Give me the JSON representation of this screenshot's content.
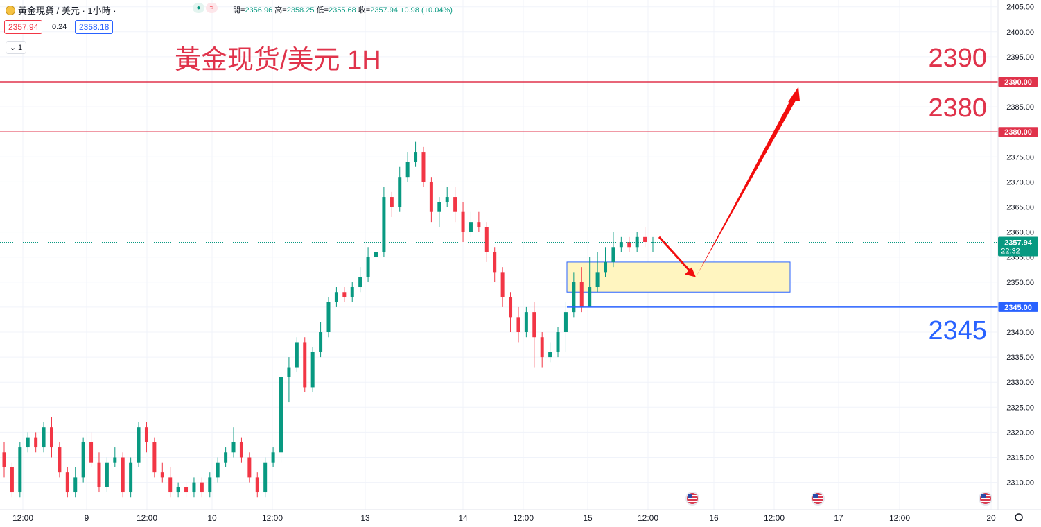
{
  "header": {
    "symbol": "黃金現貨 / 美元 · 1小時 ·",
    "open_label": "開=",
    "open": "2356.96",
    "high_label": "高=",
    "high": "2358.25",
    "low_label": "低=",
    "low": "2355.68",
    "close_label": "收=",
    "close": "2357.94",
    "change": "+0.98 (+0.04%)",
    "sell_price": "2357.94",
    "spread": "0.24",
    "buy_price": "2358.18",
    "indicator_count": "1",
    "chart_title": "黃金现货/美元 1H"
  },
  "colors": {
    "up": "#089981",
    "down": "#f23645",
    "red_line": "#e0334b",
    "blue_line": "#2962ff",
    "zone_fill": "#fff5c0",
    "zone_border": "#2962ff",
    "price_line": "#089981"
  },
  "chart_data": {
    "type": "candlestick",
    "title": "黃金现货/美元 1H",
    "ylim": [
      2305,
      2405
    ],
    "yticks": [
      2310,
      2315,
      2320,
      2325,
      2330,
      2335,
      2340,
      2345,
      2350,
      2355,
      2360,
      2365,
      2370,
      2375,
      2380,
      2385,
      2390,
      2395,
      2400,
      2405
    ],
    "xticks": [
      "12:00",
      "9",
      "12:00",
      "10",
      "12:00",
      "13",
      "14",
      "12:00",
      "15",
      "12:00",
      "16",
      "12:00",
      "17",
      "12:00",
      "20"
    ],
    "current_price": "2357.94",
    "countdown": "22:32",
    "horizontal_levels": [
      {
        "value": 2390,
        "label": "2390.00",
        "annotation": "2390",
        "color": "red"
      },
      {
        "value": 2380,
        "label": "2380.00",
        "annotation": "2380",
        "color": "red"
      },
      {
        "value": 2345,
        "label": "2345.00",
        "annotation": "2345",
        "color": "blue"
      }
    ],
    "zone": {
      "from_bar": 72,
      "to_bar": 102,
      "low": 2348,
      "high": 2354
    },
    "arrow_path": [
      {
        "bar": 80,
        "price": 2359
      },
      {
        "bar": 86,
        "price": 2351
      },
      {
        "bar": 103,
        "price": 2389
      }
    ],
    "event_markers": [
      "us-flag-icon",
      "us-flag-icon",
      "us-flag-icon"
    ],
    "candles": [
      [
        2316,
        2313,
        2318,
        2311
      ],
      [
        2313,
        2308,
        2314,
        2307
      ],
      [
        2308,
        2317,
        2318,
        2307
      ],
      [
        2317,
        2319,
        2320,
        2316
      ],
      [
        2319,
        2317,
        2320,
        2316
      ],
      [
        2317,
        2321,
        2322,
        2316
      ],
      [
        2321,
        2317,
        2323,
        2315
      ],
      [
        2317,
        2312,
        2318,
        2311
      ],
      [
        2312,
        2308,
        2313,
        2307
      ],
      [
        2308,
        2311,
        2313,
        2307
      ],
      [
        2311,
        2318,
        2319,
        2310
      ],
      [
        2318,
        2314,
        2320,
        2313
      ],
      [
        2314,
        2309,
        2316,
        2308
      ],
      [
        2309,
        2314,
        2315,
        2308
      ],
      [
        2314,
        2315,
        2317,
        2313
      ],
      [
        2315,
        2308,
        2316,
        2307
      ],
      [
        2308,
        2314,
        2315,
        2307
      ],
      [
        2314,
        2321,
        2322,
        2313
      ],
      [
        2321,
        2318,
        2322,
        2316
      ],
      [
        2318,
        2312,
        2319,
        2311
      ],
      [
        2312,
        2311,
        2314,
        2310
      ],
      [
        2311,
        2308,
        2313,
        2307
      ],
      [
        2308,
        2309,
        2310,
        2307
      ],
      [
        2309,
        2308,
        2310,
        2307
      ],
      [
        2308,
        2310,
        2311,
        2307
      ],
      [
        2310,
        2308,
        2311,
        2307
      ],
      [
        2308,
        2311,
        2312,
        2307
      ],
      [
        2311,
        2314,
        2315,
        2310
      ],
      [
        2314,
        2316,
        2317,
        2313
      ],
      [
        2316,
        2318,
        2321,
        2315
      ],
      [
        2318,
        2315,
        2319,
        2314
      ],
      [
        2315,
        2311,
        2316,
        2310
      ],
      [
        2311,
        2308,
        2312,
        2307
      ],
      [
        2308,
        2314,
        2315,
        2307
      ],
      [
        2314,
        2316,
        2317,
        2313
      ],
      [
        2316,
        2331,
        2332,
        2314
      ],
      [
        2331,
        2333,
        2335,
        2326
      ],
      [
        2333,
        2338,
        2339,
        2332
      ],
      [
        2338,
        2329,
        2339,
        2328
      ],
      [
        2329,
        2336,
        2337,
        2328
      ],
      [
        2336,
        2340,
        2342,
        2335
      ],
      [
        2340,
        2346,
        2347,
        2339
      ],
      [
        2346,
        2348,
        2349,
        2345
      ],
      [
        2348,
        2347,
        2349,
        2346
      ],
      [
        2347,
        2349,
        2350,
        2346
      ],
      [
        2349,
        2351,
        2353,
        2348
      ],
      [
        2351,
        2355,
        2357,
        2350
      ],
      [
        2355,
        2356,
        2358,
        2353
      ],
      [
        2356,
        2367,
        2369,
        2355
      ],
      [
        2367,
        2365,
        2368,
        2363
      ],
      [
        2365,
        2371,
        2373,
        2364
      ],
      [
        2371,
        2374,
        2376,
        2370
      ],
      [
        2374,
        2376,
        2378,
        2373
      ],
      [
        2376,
        2370,
        2377,
        2369
      ],
      [
        2370,
        2364,
        2371,
        2362
      ],
      [
        2364,
        2366,
        2367,
        2361
      ],
      [
        2366,
        2367,
        2369,
        2365
      ],
      [
        2367,
        2364,
        2369,
        2362
      ],
      [
        2364,
        2360,
        2366,
        2358
      ],
      [
        2360,
        2362,
        2364,
        2359
      ],
      [
        2362,
        2361,
        2364,
        2360
      ],
      [
        2361,
        2356,
        2362,
        2354
      ],
      [
        2356,
        2352,
        2357,
        2350
      ],
      [
        2352,
        2347,
        2353,
        2345
      ],
      [
        2347,
        2343,
        2348,
        2340
      ],
      [
        2343,
        2340,
        2345,
        2338
      ],
      [
        2340,
        2344,
        2345,
        2339
      ],
      [
        2344,
        2339,
        2346,
        2333
      ],
      [
        2339,
        2335,
        2340,
        2333
      ],
      [
        2335,
        2336,
        2338,
        2334
      ],
      [
        2336,
        2340,
        2341,
        2335
      ],
      [
        2340,
        2344,
        2346,
        2336
      ],
      [
        2344,
        2350,
        2352,
        2343
      ],
      [
        2350,
        2345,
        2353,
        2344
      ],
      [
        2345,
        2349,
        2355,
        2347
      ],
      [
        2349,
        2352,
        2356,
        2348
      ],
      [
        2352,
        2354,
        2357,
        2351
      ],
      [
        2354,
        2357,
        2360,
        2353
      ],
      [
        2357,
        2358,
        2359,
        2356
      ],
      [
        2358,
        2357,
        2359,
        2356
      ],
      [
        2357,
        2359,
        2360,
        2356
      ],
      [
        2359,
        2358,
        2361,
        2357
      ],
      [
        2358,
        2358,
        2359,
        2356
      ]
    ]
  },
  "overlay_labels": {
    "level_2390": "2390",
    "level_2380": "2380",
    "level_2345": "2345"
  }
}
